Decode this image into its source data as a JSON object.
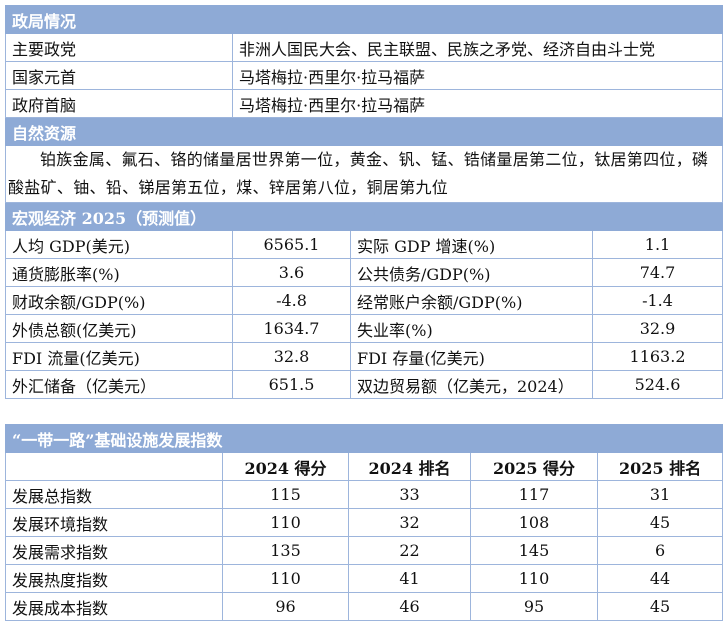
{
  "politics": {
    "title": "政局情况",
    "rows": [
      [
        "主要政党",
        "非洲人国民大会、民主联盟、民族之矛党、经济自由斗士党"
      ],
      [
        "国家元首",
        "马塔梅拉·西里尔·拉马福萨"
      ],
      [
        "政府首脑",
        "马塔梅拉·西里尔·拉马福萨"
      ]
    ]
  },
  "resources": {
    "title": "自然资源",
    "text": "铂族金属、氟石、铬的储量居世界第一位，黄金、钒、锰、锆储量居第二位，钛居第四位，磷酸盐矿、铀、铅、锑居第五位，煤、锌居第八位，铜居第九位"
  },
  "economy": {
    "title": "宏观经济 2025（预测值）",
    "rows": [
      [
        "人均 GDP(美元)",
        "6565.1",
        "实际 GDP 增速(%)",
        "1.1"
      ],
      [
        "通货膨胀率(%)",
        "3.6",
        "公共债务/GDP(%)",
        "74.7"
      ],
      [
        "财政余额/GDP(%)",
        "-4.8",
        "经常账户余额/GDP(%)",
        "-1.4"
      ],
      [
        "外债总额(亿美元)",
        "1634.7",
        "失业率(%)",
        "32.9"
      ],
      [
        "FDI 流量(亿美元)",
        "32.8",
        "FDI 存量(亿美元)",
        "1163.2"
      ],
      [
        "外汇储备（亿美元）",
        "651.5",
        "双边贸易额（亿美元，2024）",
        "524.6"
      ]
    ]
  },
  "bri": {
    "title": "“一带一路”基础设施发展指数",
    "header": [
      "2024 得分",
      "2024 排名",
      "2025 得分",
      "2025 排名"
    ],
    "rows": [
      [
        "发展总指数",
        "115",
        "33",
        "117",
        "31"
      ],
      [
        "发展环境指数",
        "110",
        "32",
        "108",
        "45"
      ],
      [
        "发展需求指数",
        "135",
        "22",
        "145",
        "6"
      ],
      [
        "发展热度指数",
        "110",
        "41",
        "110",
        "44"
      ],
      [
        "发展成本指数",
        "96",
        "46",
        "95",
        "45"
      ]
    ]
  }
}
